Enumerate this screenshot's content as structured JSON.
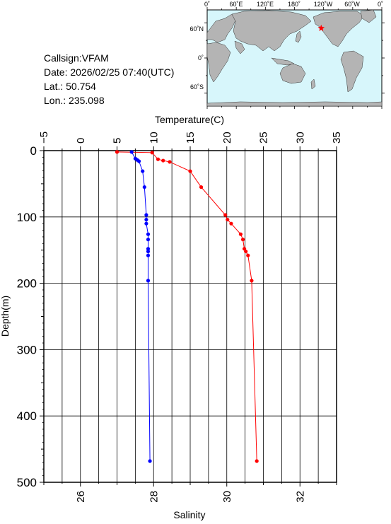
{
  "station": {
    "callsign_line": "Callsign:VFAM",
    "date_line": "Date:  2026/02/25 07:40(UTC)",
    "lat_line": "Lat.:   50.754",
    "lon_line": "Lon.:  235.098"
  },
  "map": {
    "top_labels": [
      "0˚",
      "60˚E",
      "120˚E",
      "180˚",
      "120˚W",
      "60˚W",
      "0˚"
    ],
    "left_labels": [
      "60˚N",
      "0˚",
      "60˚S"
    ],
    "colors": {
      "ocean": "#d7f6fb",
      "land": "#b4b4b4",
      "marker": "#ff0000"
    },
    "marker_lon": 235.098,
    "marker_lat": 50.754
  },
  "chart_data": {
    "type": "line",
    "xlabel_top": "Temperature(C)",
    "xlabel_bottom": "Salinity",
    "ylabel": "Depth(m)",
    "temperature_axis": {
      "range": [
        -5,
        35
      ],
      "ticks": [
        "−5",
        "0",
        "5",
        "10",
        "15",
        "20",
        "25",
        "30",
        "35"
      ]
    },
    "salinity_axis": {
      "range": [
        25,
        33
      ],
      "ticks": [
        "26",
        "28",
        "30",
        "32"
      ]
    },
    "depth_axis": {
      "range": [
        0,
        500
      ],
      "reversed": true,
      "ticks": [
        "0",
        "100",
        "200",
        "300",
        "400",
        "500"
      ]
    },
    "grid": true,
    "series": [
      {
        "quantity": "temperature",
        "color": "#ff0000",
        "points": [
          [
            5.0,
            2
          ],
          [
            9.8,
            3
          ],
          [
            10.6,
            13
          ],
          [
            11.3,
            15
          ],
          [
            12.2,
            17
          ],
          [
            15.0,
            31
          ],
          [
            16.5,
            55
          ],
          [
            19.8,
            97
          ],
          [
            20.1,
            104
          ],
          [
            20.6,
            110
          ],
          [
            21.9,
            126
          ],
          [
            22.2,
            134
          ],
          [
            22.4,
            148
          ],
          [
            22.6,
            152
          ],
          [
            22.9,
            158
          ],
          [
            23.4,
            196
          ],
          [
            24.1,
            468
          ]
        ]
      },
      {
        "quantity": "salinity",
        "color": "#0000ff",
        "points": [
          [
            27.4,
            2
          ],
          [
            27.5,
            12
          ],
          [
            27.55,
            14
          ],
          [
            27.6,
            16
          ],
          [
            27.7,
            31
          ],
          [
            27.75,
            55
          ],
          [
            27.8,
            97
          ],
          [
            27.8,
            104
          ],
          [
            27.8,
            110
          ],
          [
            27.85,
            126
          ],
          [
            27.85,
            134
          ],
          [
            27.85,
            148
          ],
          [
            27.85,
            152
          ],
          [
            27.85,
            158
          ],
          [
            27.85,
            196
          ],
          [
            27.9,
            468
          ]
        ]
      }
    ]
  }
}
